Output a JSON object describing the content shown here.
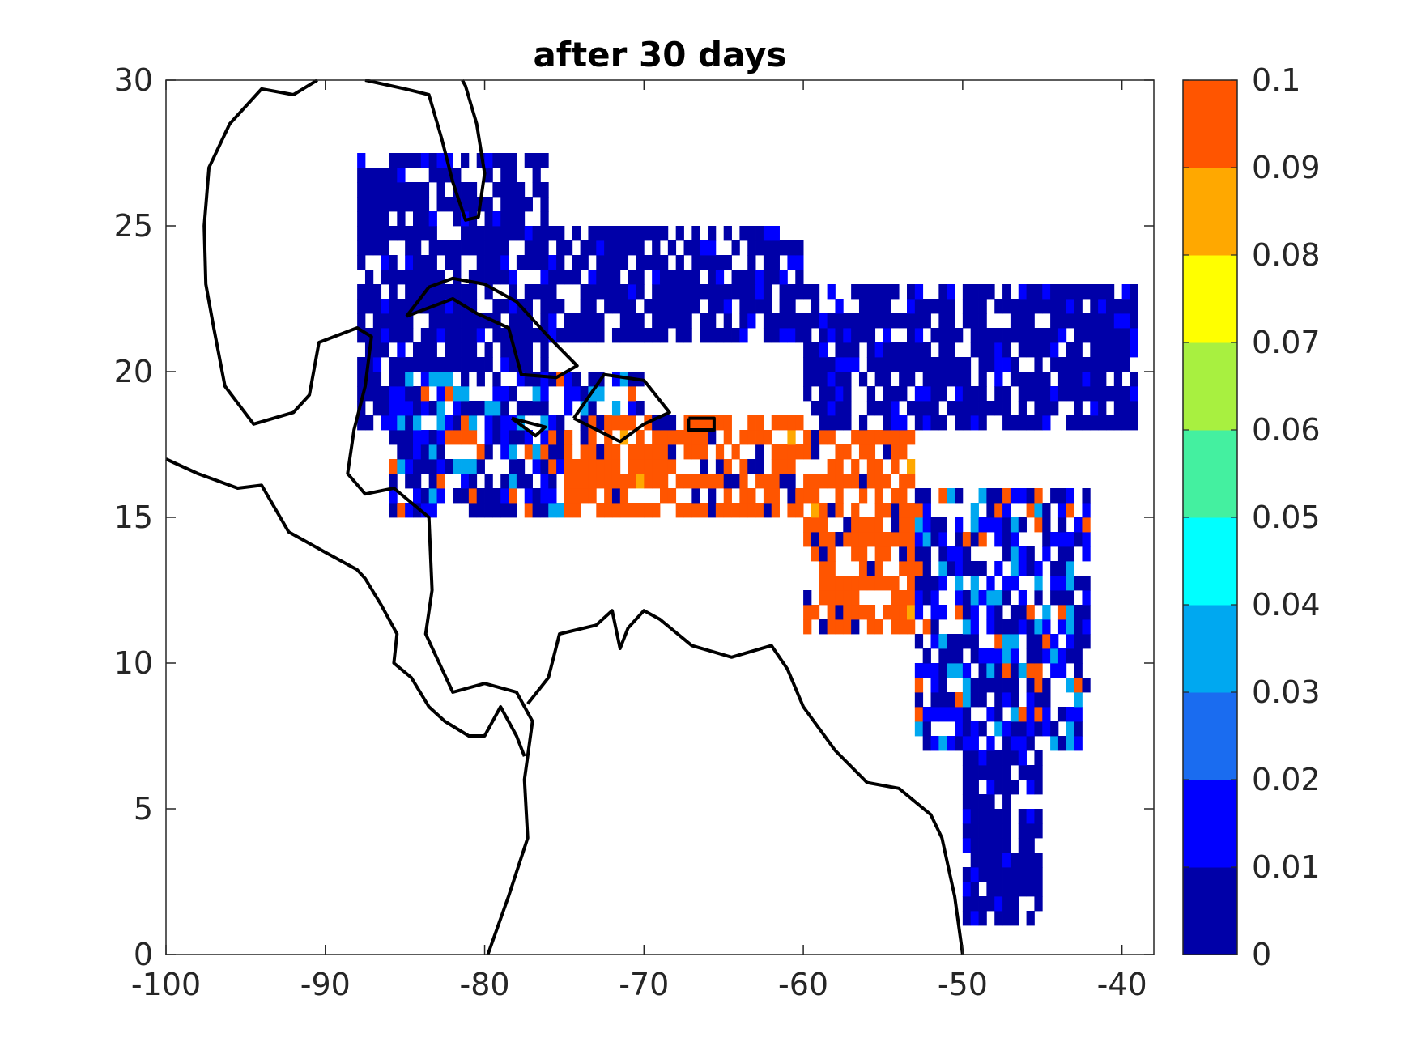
{
  "chart_data": {
    "type": "heatmap",
    "title": "after 30 days",
    "xlabel": "",
    "ylabel": "",
    "xlim": [
      -100,
      -38
    ],
    "ylim": [
      0,
      30
    ],
    "x_ticks": [
      "-100",
      "-90",
      "-80",
      "-70",
      "-60",
      "-50",
      "-40"
    ],
    "y_ticks": [
      "0",
      "5",
      "10",
      "15",
      "20",
      "25",
      "30"
    ],
    "grid": false,
    "colorbar": {
      "range": [
        0,
        0.1
      ],
      "ticks": [
        "0",
        "0.01",
        "0.02",
        "0.03",
        "0.04",
        "0.05",
        "0.06",
        "0.07",
        "0.08",
        "0.09",
        "0.1"
      ],
      "colors": [
        "#0000a8",
        "#0000ff",
        "#1a6cf0",
        "#00a8f0",
        "#00ffff",
        "#44f0a0",
        "#a8f040",
        "#ffff00",
        "#ffa800",
        "#ff5500"
      ]
    },
    "coastlines": "black",
    "value_regions": [
      {
        "lon": [
          -88,
          -76
        ],
        "lat": [
          18,
          27.5
        ],
        "level": 0.005
      },
      {
        "lon": [
          -76,
          -60
        ],
        "lat": [
          21,
          25
        ],
        "level": 0.005
      },
      {
        "lon": [
          -60,
          -39
        ],
        "lat": [
          18,
          23
        ],
        "level": 0.005
      },
      {
        "lon": [
          -86,
          -70
        ],
        "lat": [
          15,
          20
        ],
        "level": 0.02
      },
      {
        "lon": [
          -75,
          -60
        ],
        "lat": [
          15,
          18.5
        ],
        "level": 0.1
      },
      {
        "lon": [
          -60,
          -53
        ],
        "lat": [
          11,
          18
        ],
        "level": 0.1
      },
      {
        "lon": [
          -53,
          -42
        ],
        "lat": [
          7,
          16
        ],
        "level": 0.02
      },
      {
        "lon": [
          -50,
          -45
        ],
        "lat": [
          1,
          7
        ],
        "level": 0.005
      }
    ]
  }
}
